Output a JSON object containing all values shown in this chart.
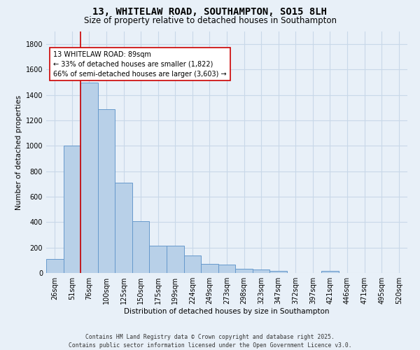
{
  "title": "13, WHITELAW ROAD, SOUTHAMPTON, SO15 8LH",
  "subtitle": "Size of property relative to detached houses in Southampton",
  "xlabel": "Distribution of detached houses by size in Southampton",
  "ylabel": "Number of detached properties",
  "categories": [
    "26sqm",
    "51sqm",
    "76sqm",
    "100sqm",
    "125sqm",
    "150sqm",
    "175sqm",
    "199sqm",
    "224sqm",
    "249sqm",
    "273sqm",
    "298sqm",
    "323sqm",
    "347sqm",
    "372sqm",
    "397sqm",
    "421sqm",
    "446sqm",
    "471sqm",
    "495sqm",
    "520sqm"
  ],
  "values": [
    110,
    1000,
    1500,
    1290,
    710,
    405,
    215,
    215,
    135,
    70,
    65,
    35,
    30,
    15,
    0,
    0,
    15,
    0,
    0,
    0,
    0
  ],
  "bar_color": "#b8d0e8",
  "bar_edge_color": "#6699cc",
  "property_line_color": "#cc0000",
  "annotation_text": "13 WHITELAW ROAD: 89sqm\n← 33% of detached houses are smaller (1,822)\n66% of semi-detached houses are larger (3,603) →",
  "annotation_box_color": "#ffffff",
  "annotation_box_edge": "#cc0000",
  "ylim": [
    0,
    1900
  ],
  "yticks": [
    0,
    200,
    400,
    600,
    800,
    1000,
    1200,
    1400,
    1600,
    1800
  ],
  "grid_color": "#c8d8e8",
  "background_color": "#e8f0f8",
  "footer_line1": "Contains HM Land Registry data © Crown copyright and database right 2025.",
  "footer_line2": "Contains public sector information licensed under the Open Government Licence v3.0."
}
